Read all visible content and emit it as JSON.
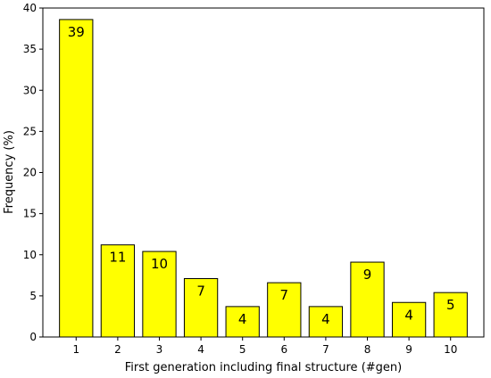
{
  "chart_data": {
    "type": "bar",
    "xlabel": "First generation including final structure (#gen)",
    "ylabel": "Frequency (%)",
    "ylim": [
      0,
      40
    ],
    "yticks": [
      0,
      5,
      10,
      15,
      20,
      25,
      30,
      35,
      40
    ],
    "categories": [
      "1",
      "2",
      "3",
      "4",
      "5",
      "6",
      "7",
      "8",
      "9",
      "10"
    ],
    "values": [
      38.6,
      11.2,
      10.4,
      7.1,
      3.7,
      6.6,
      3.7,
      9.1,
      4.2,
      5.4
    ],
    "labels": [
      "39",
      "11",
      "10",
      "7",
      "4",
      "7",
      "4",
      "9",
      "4",
      "5"
    ],
    "bar_color": "#ffff00",
    "edge_color": "#000000",
    "grid": false,
    "legend": "none"
  }
}
